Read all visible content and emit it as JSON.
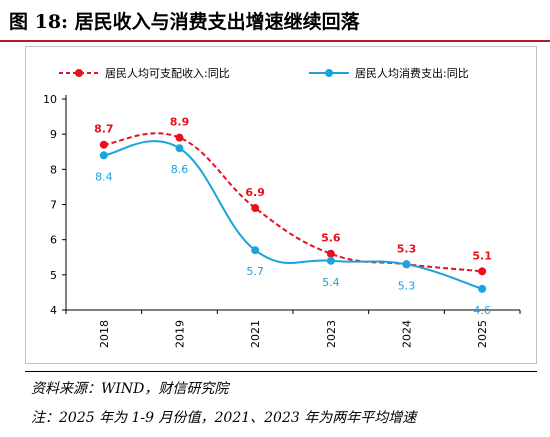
{
  "figure": {
    "title": "图 18: 居民收入与消费支出增速继续回落",
    "source": "资料来源：WIND，财信研究院",
    "note": "注：2025 年为 1-9 月份值，2021、2023 年为两年平均增速"
  },
  "chart_data": {
    "type": "line",
    "categories": [
      "2018",
      "2019",
      "2021",
      "2023",
      "2024",
      "2025"
    ],
    "ylim": [
      4,
      10
    ],
    "yticks": [
      4,
      5,
      6,
      7,
      8,
      9,
      10
    ],
    "grid": false,
    "legend_position": "top",
    "series": [
      {
        "name": "居民人均可支配收入:同比",
        "values": [
          8.7,
          8.9,
          6.9,
          5.6,
          5.3,
          5.1
        ],
        "labels": [
          "8.7",
          "8.9",
          "6.9",
          "5.6",
          "5.3",
          "5.1"
        ],
        "color": "#e8101c",
        "style": "dashed",
        "label_position": "above"
      },
      {
        "name": "居民人均消费支出:同比",
        "values": [
          8.4,
          8.6,
          5.7,
          5.4,
          5.3,
          4.6
        ],
        "labels": [
          "8.4",
          "8.6",
          "5.7",
          "5.4",
          "5.3",
          "4.6"
        ],
        "color": "#1aa3dd",
        "style": "solid",
        "label_position": "below"
      }
    ]
  }
}
